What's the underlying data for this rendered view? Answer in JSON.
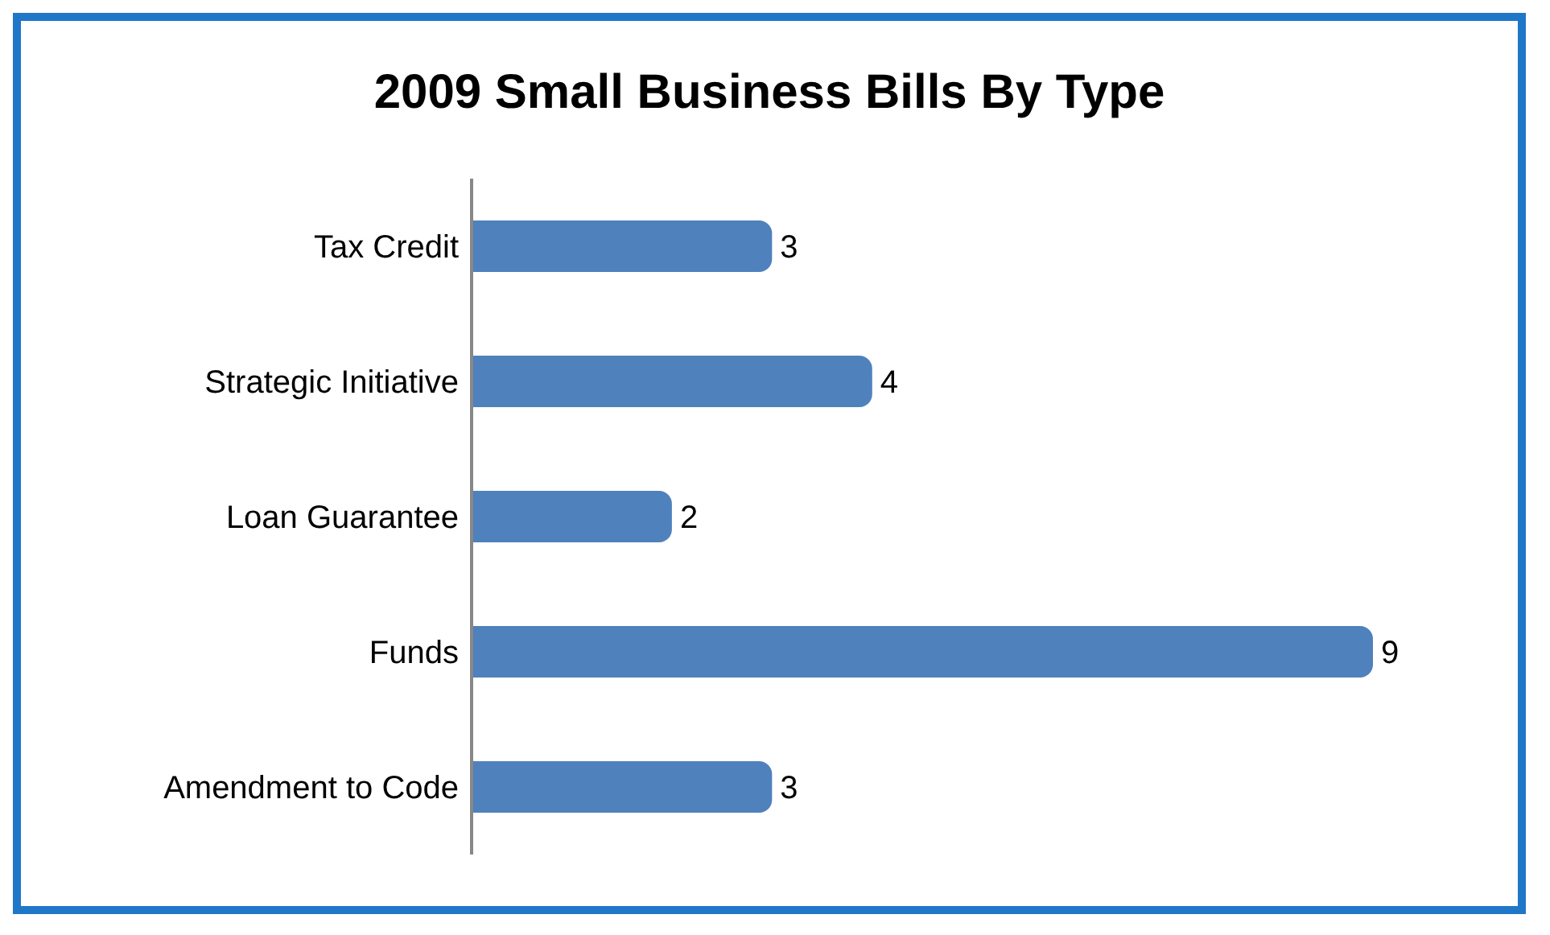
{
  "chart_data": {
    "type": "bar",
    "orientation": "horizontal",
    "title": "2009 Small Business Bills By Type",
    "categories": [
      "Tax Credit",
      "Strategic Initiative",
      "Loan Guarantee",
      "Funds",
      "Amendment to Code"
    ],
    "values": [
      3,
      4,
      2,
      9,
      3
    ],
    "color": "#4f81bd",
    "data_labels": true
  }
}
